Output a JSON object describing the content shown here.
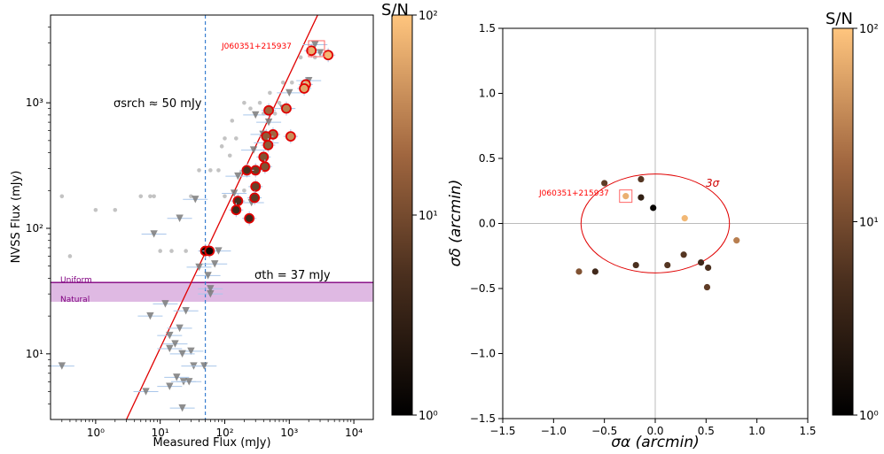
{
  "chart_data": [
    {
      "type": "scatter",
      "title": "",
      "xlabel": "Measured Flux (mJy)",
      "ylabel": "NVSS Flux (mJy)",
      "xscale": "log",
      "yscale": "log",
      "xlim": [
        0.2,
        20000
      ],
      "ylim": [
        3,
        5000
      ],
      "x_ticks": [
        {
          "value": 1,
          "label": "10⁰"
        },
        {
          "value": 10,
          "label": "10¹"
        },
        {
          "value": 100,
          "label": "10²"
        },
        {
          "value": 1000,
          "label": "10³"
        },
        {
          "value": 10000,
          "label": "10⁴"
        }
      ],
      "y_ticks": [
        {
          "value": 10,
          "label": "10¹"
        },
        {
          "value": 100,
          "label": "10²"
        },
        {
          "value": 1000,
          "label": "10³"
        }
      ],
      "annotations": {
        "sigma_srch": "σsrch ≈ 50 mJy",
        "sigma_th": "σth = 37 mJy",
        "uniform": "Uniform",
        "natural": "Natural",
        "source": "J060351+215937"
      },
      "reference_lines": {
        "vertical_x": 50,
        "band_low": 26,
        "band_high": 37,
        "band_mid": 34
      },
      "fit_line": {
        "x1": 3,
        "y1": 3,
        "x2": 3000,
        "y2": 5500
      },
      "colorbar": {
        "label": "S/N",
        "min": 1,
        "max": 100,
        "ticks": [
          {
            "value": 1,
            "label": "10⁰"
          },
          {
            "value": 10,
            "label": "10¹"
          },
          {
            "value": 100,
            "label": "10²"
          }
        ]
      },
      "detections": [
        {
          "x": 2200,
          "y": 2600,
          "snr": 70
        },
        {
          "x": 4000,
          "y": 2400,
          "snr": 80
        },
        {
          "x": 1800,
          "y": 1400,
          "snr": 70
        },
        {
          "x": 1700,
          "y": 1300,
          "snr": 60
        },
        {
          "x": 900,
          "y": 900,
          "snr": 30
        },
        {
          "x": 480,
          "y": 870,
          "snr": 20
        },
        {
          "x": 1050,
          "y": 540,
          "snr": 40
        },
        {
          "x": 560,
          "y": 560,
          "snr": 20
        },
        {
          "x": 440,
          "y": 540,
          "snr": 15
        },
        {
          "x": 470,
          "y": 460,
          "snr": 15
        },
        {
          "x": 400,
          "y": 370,
          "snr": 12
        },
        {
          "x": 420,
          "y": 310,
          "snr": 12
        },
        {
          "x": 300,
          "y": 290,
          "snr": 8
        },
        {
          "x": 220,
          "y": 290,
          "snr": 5
        },
        {
          "x": 300,
          "y": 215,
          "snr": 8
        },
        {
          "x": 290,
          "y": 175,
          "snr": 7
        },
        {
          "x": 160,
          "y": 165,
          "snr": 5
        },
        {
          "x": 150,
          "y": 140,
          "snr": 4
        },
        {
          "x": 240,
          "y": 120,
          "snr": 4
        },
        {
          "x": 50,
          "y": 66,
          "snr": 1.5
        },
        {
          "x": 58,
          "y": 66,
          "snr": 1.3
        }
      ],
      "upper_limits": [
        {
          "x": 2500,
          "y": 2900
        },
        {
          "x": 3000,
          "y": 2500
        },
        {
          "x": 2000,
          "y": 1500
        },
        {
          "x": 1000,
          "y": 1200
        },
        {
          "x": 800,
          "y": 900
        },
        {
          "x": 300,
          "y": 800
        },
        {
          "x": 480,
          "y": 700
        },
        {
          "x": 390,
          "y": 560
        },
        {
          "x": 440,
          "y": 480
        },
        {
          "x": 280,
          "y": 420
        },
        {
          "x": 160,
          "y": 260
        },
        {
          "x": 140,
          "y": 190
        },
        {
          "x": 260,
          "y": 160
        },
        {
          "x": 35,
          "y": 170
        },
        {
          "x": 80,
          "y": 66
        },
        {
          "x": 70,
          "y": 52
        },
        {
          "x": 40,
          "y": 49
        },
        {
          "x": 55,
          "y": 42
        },
        {
          "x": 20,
          "y": 120
        },
        {
          "x": 8,
          "y": 90
        },
        {
          "x": 60,
          "y": 30
        },
        {
          "x": 60,
          "y": 33
        },
        {
          "x": 12,
          "y": 25
        },
        {
          "x": 25,
          "y": 22
        },
        {
          "x": 7,
          "y": 20
        },
        {
          "x": 20,
          "y": 16
        },
        {
          "x": 14,
          "y": 14
        },
        {
          "x": 17,
          "y": 12
        },
        {
          "x": 14,
          "y": 11
        },
        {
          "x": 30,
          "y": 10.5
        },
        {
          "x": 22,
          "y": 10
        },
        {
          "x": 33,
          "y": 8
        },
        {
          "x": 48,
          "y": 8
        },
        {
          "x": 18,
          "y": 6.5
        },
        {
          "x": 23,
          "y": 6
        },
        {
          "x": 28,
          "y": 6
        },
        {
          "x": 6,
          "y": 5
        },
        {
          "x": 22,
          "y": 3.7
        },
        {
          "x": 0.3,
          "y": 8
        },
        {
          "x": 14,
          "y": 5.5
        }
      ],
      "background_points": [
        {
          "x": 0.3,
          "y": 180
        },
        {
          "x": 0.4,
          "y": 60
        },
        {
          "x": 1,
          "y": 140
        },
        {
          "x": 2,
          "y": 140
        },
        {
          "x": 5,
          "y": 180
        },
        {
          "x": 7,
          "y": 180
        },
        {
          "x": 8,
          "y": 180
        },
        {
          "x": 10,
          "y": 66
        },
        {
          "x": 15,
          "y": 66
        },
        {
          "x": 25,
          "y": 66
        },
        {
          "x": 30,
          "y": 180
        },
        {
          "x": 40,
          "y": 290
        },
        {
          "x": 60,
          "y": 290
        },
        {
          "x": 80,
          "y": 290
        },
        {
          "x": 100,
          "y": 520
        },
        {
          "x": 150,
          "y": 520
        },
        {
          "x": 200,
          "y": 1000
        },
        {
          "x": 250,
          "y": 900
        },
        {
          "x": 350,
          "y": 1000
        },
        {
          "x": 100,
          "y": 180
        },
        {
          "x": 120,
          "y": 380
        },
        {
          "x": 200,
          "y": 200
        },
        {
          "x": 90,
          "y": 450
        },
        {
          "x": 130,
          "y": 720
        },
        {
          "x": 180,
          "y": 280
        },
        {
          "x": 500,
          "y": 1200
        },
        {
          "x": 800,
          "y": 1450
        },
        {
          "x": 1100,
          "y": 1450
        },
        {
          "x": 1500,
          "y": 2300
        },
        {
          "x": 2500,
          "y": 2300
        },
        {
          "x": 400,
          "y": 820
        },
        {
          "x": 600,
          "y": 820
        },
        {
          "x": 700,
          "y": 1000
        }
      ]
    },
    {
      "type": "scatter",
      "title": "",
      "xlabel": "σα (arcmin)",
      "ylabel": "σδ (arcmin)",
      "xlim": [
        -1.5,
        1.5
      ],
      "ylim": [
        -1.5,
        1.5
      ],
      "x_ticks": [
        "−1.5",
        "−1.0",
        "−0.5",
        "0.0",
        "0.5",
        "1.0",
        "1.5"
      ],
      "y_ticks": [
        "−1.5",
        "−1.0",
        "−0.5",
        "0.0",
        "0.5",
        "1.0",
        "1.5"
      ],
      "ellipse": {
        "cx": 0,
        "cy": 0,
        "rx": 0.73,
        "ry": 0.38,
        "label": "3σ"
      },
      "source_label": "J060351+215937",
      "colorbar": {
        "label": "S/N",
        "min": 1,
        "max": 100,
        "ticks": [
          {
            "value": 1,
            "label": "10⁰"
          },
          {
            "value": 10,
            "label": "10¹"
          },
          {
            "value": 100,
            "label": "10²"
          }
        ]
      },
      "points": [
        {
          "x": -0.29,
          "y": 0.21,
          "snr": 70,
          "marked": true
        },
        {
          "x": -0.5,
          "y": 0.31,
          "snr": 7
        },
        {
          "x": -0.14,
          "y": 0.34,
          "snr": 6
        },
        {
          "x": -0.14,
          "y": 0.2,
          "snr": 3
        },
        {
          "x": -0.02,
          "y": 0.12,
          "snr": 1.2
        },
        {
          "x": 0.29,
          "y": 0.04,
          "snr": 80
        },
        {
          "x": 0.8,
          "y": -0.13,
          "snr": 30
        },
        {
          "x": -0.75,
          "y": -0.37,
          "snr": 12
        },
        {
          "x": -0.59,
          "y": -0.37,
          "snr": 4
        },
        {
          "x": -0.19,
          "y": -0.32,
          "snr": 5
        },
        {
          "x": 0.12,
          "y": -0.32,
          "snr": 6
        },
        {
          "x": 0.28,
          "y": -0.24,
          "snr": 6
        },
        {
          "x": 0.45,
          "y": -0.3,
          "snr": 4
        },
        {
          "x": 0.52,
          "y": -0.34,
          "snr": 5
        },
        {
          "x": 0.51,
          "y": -0.49,
          "snr": 7
        }
      ]
    }
  ]
}
